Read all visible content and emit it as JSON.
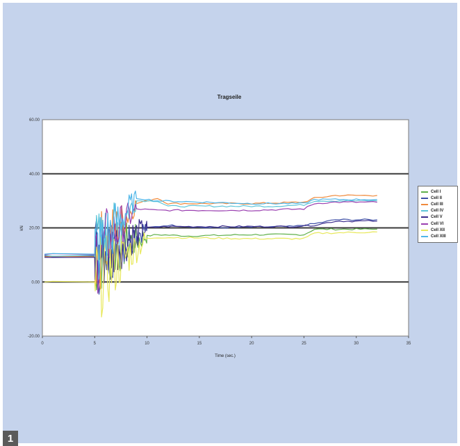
{
  "figure": {
    "badge": "1"
  },
  "chart_data": {
    "type": "line",
    "title": "Tragseile",
    "xlabel": "Time (sec.)",
    "ylabel": "kN",
    "xlim": [
      0,
      35
    ],
    "ylim": [
      -20,
      60
    ],
    "x_ticks": [
      0,
      5,
      10,
      15,
      20,
      25,
      30,
      35
    ],
    "y_ticks": [
      -20,
      0,
      20,
      40,
      60
    ],
    "y_tick_labels": [
      "-20.00",
      "0.00",
      "20.00",
      "40.00",
      "60.00"
    ],
    "grid": "major horizontal gridlines",
    "legend_position": "right",
    "series": [
      {
        "name": "Cell I",
        "color": "#5fb04a",
        "steady": [
          [
            10,
            17
          ],
          [
            11,
            17.5
          ],
          [
            14,
            17
          ],
          [
            20,
            17.5
          ],
          [
            25,
            17.5
          ],
          [
            26,
            19.5
          ],
          [
            32,
            19.5
          ]
        ]
      },
      {
        "name": "Cell II",
        "color": "#3e4fa6",
        "steady": [
          [
            10,
            20
          ],
          [
            12,
            21
          ],
          [
            16,
            20
          ],
          [
            24,
            20.5
          ],
          [
            26,
            21.5
          ],
          [
            28,
            23
          ],
          [
            32,
            23
          ]
        ]
      },
      {
        "name": "Cell III",
        "color": "#f08a3c",
        "steady": [
          [
            9,
            29
          ],
          [
            11,
            31
          ],
          [
            12,
            29
          ],
          [
            20,
            29
          ],
          [
            25,
            29.5
          ],
          [
            26,
            31
          ],
          [
            28,
            32
          ],
          [
            32,
            32
          ]
        ]
      },
      {
        "name": "Cell IV",
        "color": "#5cc5d8",
        "steady": [
          [
            9,
            30
          ],
          [
            11,
            30
          ],
          [
            12,
            28
          ],
          [
            22,
            28
          ],
          [
            25,
            28.5
          ],
          [
            26,
            30
          ],
          [
            32,
            30
          ]
        ]
      },
      {
        "name": "Cell V",
        "color": "#3a2c8c",
        "steady": [
          [
            10,
            20
          ],
          [
            12,
            20.5
          ],
          [
            20,
            20.5
          ],
          [
            24,
            20.5
          ],
          [
            26,
            21
          ],
          [
            28,
            22.5
          ],
          [
            32,
            22.5
          ]
        ]
      },
      {
        "name": "Cell VI",
        "color": "#9a3fb0",
        "steady": [
          [
            9,
            27
          ],
          [
            11,
            26.5
          ],
          [
            20,
            26.5
          ],
          [
            25,
            27
          ],
          [
            26,
            29
          ],
          [
            28,
            29.5
          ],
          [
            32,
            29.5
          ]
        ]
      },
      {
        "name": "Cell XII",
        "color": "#e8e85a",
        "steady": [
          [
            10,
            16
          ],
          [
            11,
            16.5
          ],
          [
            20,
            16
          ],
          [
            25,
            16
          ],
          [
            26,
            18
          ],
          [
            32,
            18.5
          ]
        ]
      },
      {
        "name": "Cell XIII",
        "color": "#4fb6e8",
        "steady": [
          [
            9,
            31
          ],
          [
            11,
            30
          ],
          [
            20,
            29
          ],
          [
            25,
            29
          ],
          [
            26,
            30.5
          ],
          [
            32,
            30.5
          ]
        ]
      }
    ]
  }
}
